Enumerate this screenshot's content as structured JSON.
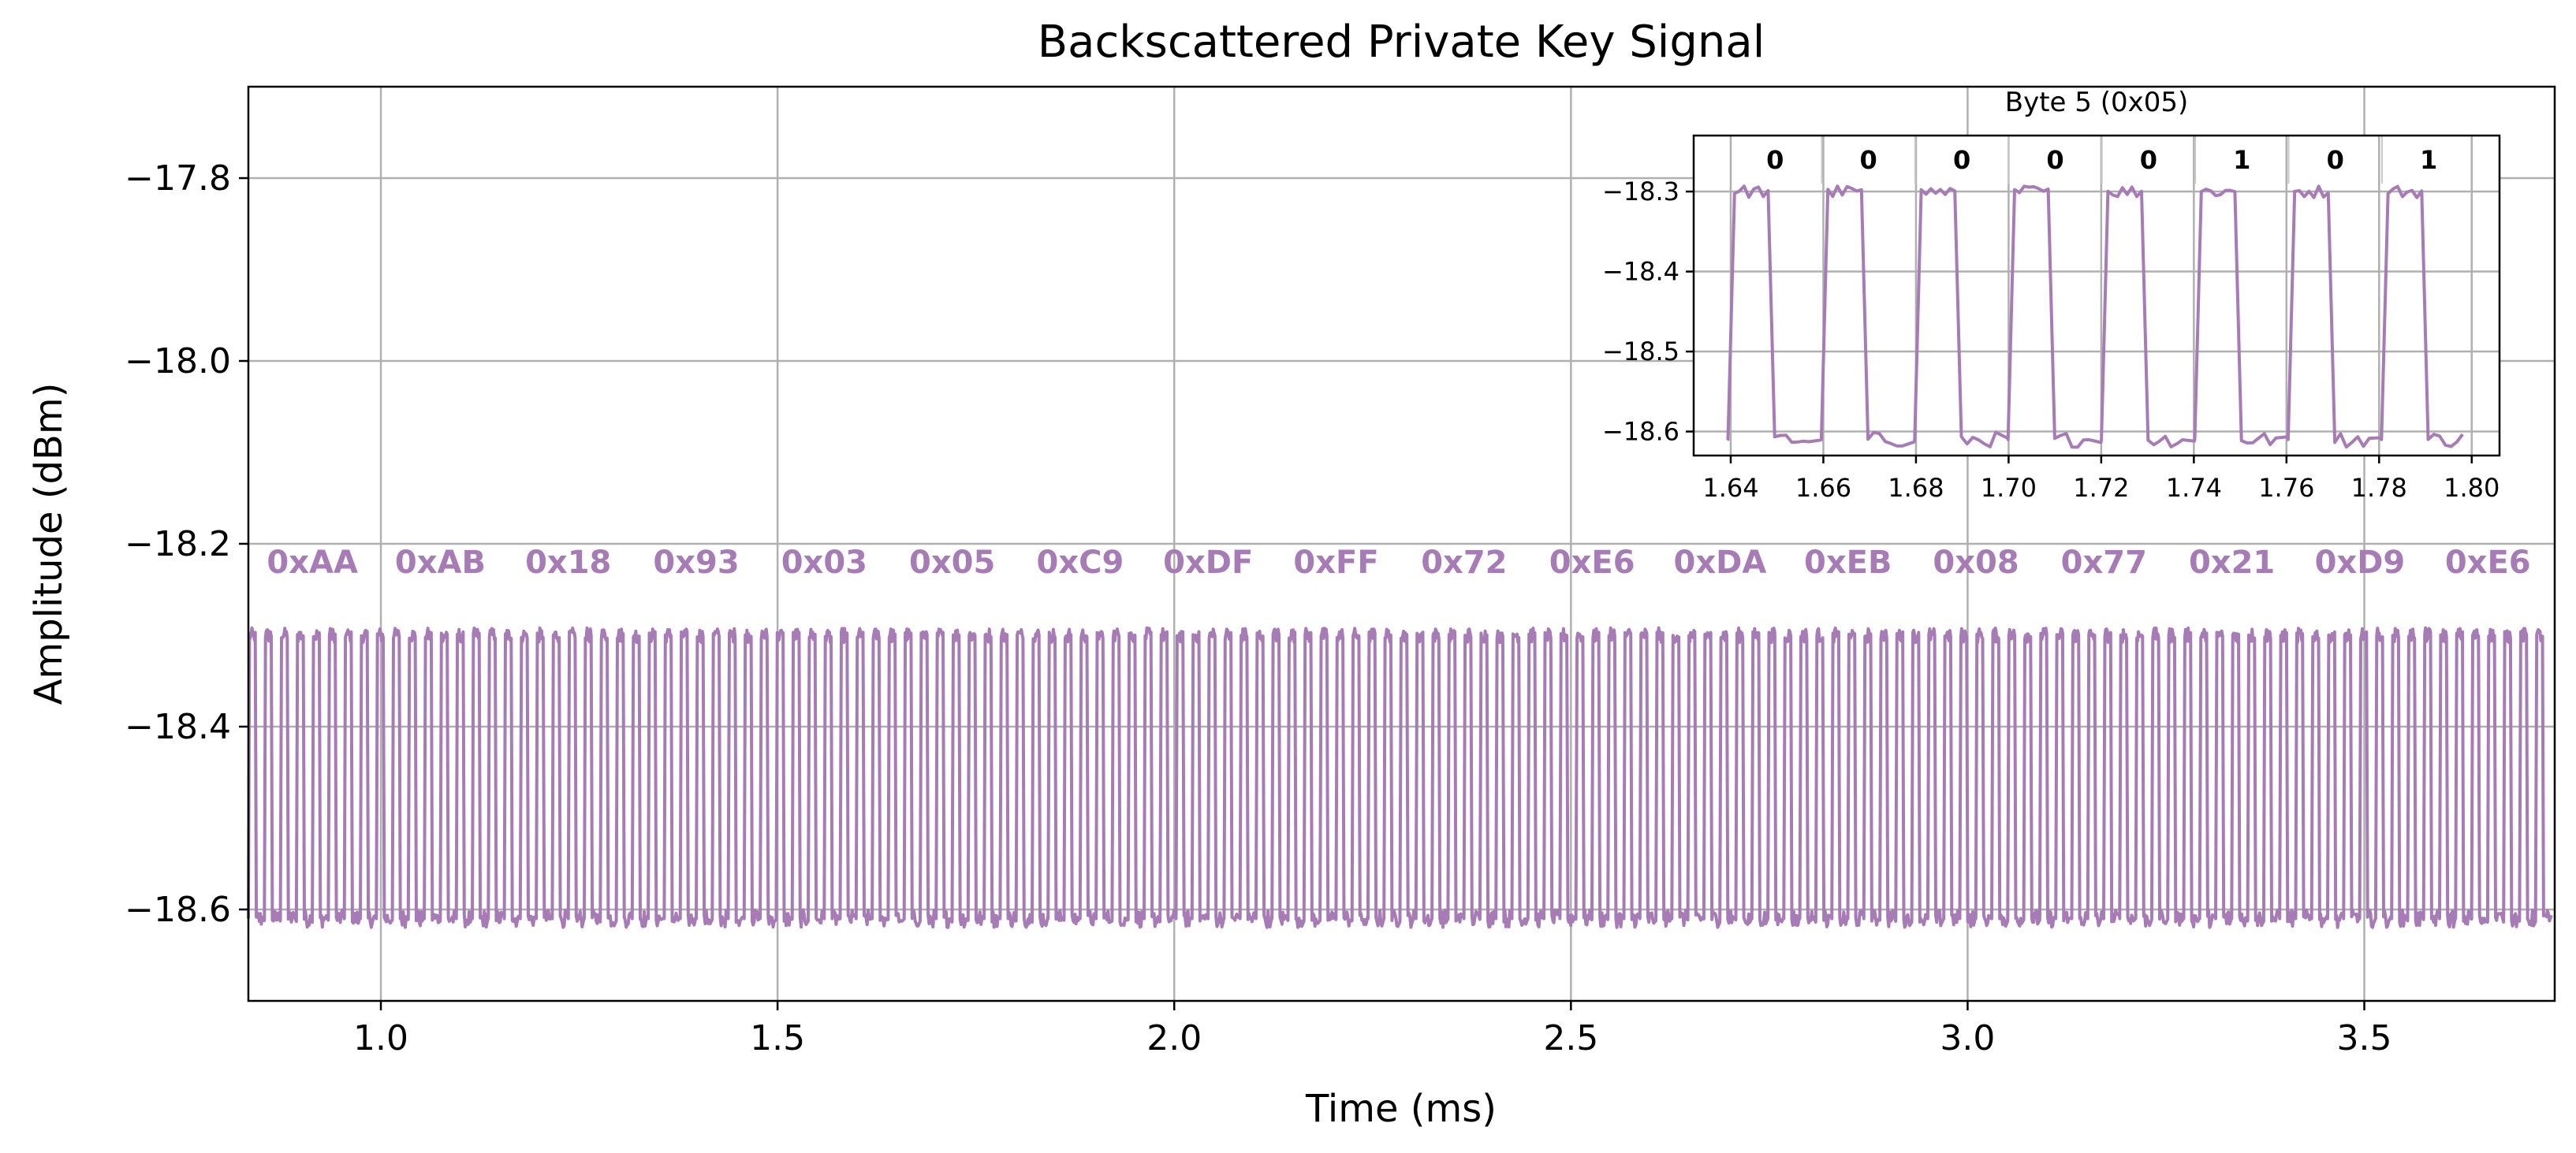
{
  "chart_data": {
    "type": "line",
    "title": "Backscattered Private Key Signal",
    "xlabel": "Time (ms)",
    "ylabel": "Amplitude (dBm)",
    "xlim": [
      0.833,
      3.74
    ],
    "ylim": [
      -18.7,
      -17.7
    ],
    "xticks": [
      1.0,
      1.5,
      2.0,
      2.5,
      3.0,
      3.5
    ],
    "xtick_labels": [
      "1.0",
      "1.5",
      "2.0",
      "2.5",
      "3.0",
      "3.5"
    ],
    "yticks": [
      -17.8,
      -18.0,
      -18.2,
      -18.4,
      -18.6
    ],
    "ytick_labels": [
      "−17.8",
      "−18.0",
      "−18.2",
      "−18.4",
      "−18.6"
    ],
    "grid": true,
    "line_color": "#a77bb5",
    "signal": {
      "high_level": -18.3,
      "low_level": -18.61,
      "start_time": 0.833,
      "byte_duration": 0.1613,
      "bit_duration": 0.02016,
      "noise": 0.008
    },
    "bytes": [
      "0xAA",
      "0xAB",
      "0x18",
      "0x93",
      "0x03",
      "0x05",
      "0xC9",
      "0xDF",
      "0xFF",
      "0x72",
      "0xE6",
      "0xDA",
      "0xEB",
      "0x08",
      "0x77",
      "0x21",
      "0xD9",
      "0xE6"
    ],
    "byte_label_y": -18.22,
    "inset": {
      "title": "Byte 5 (0x05)",
      "xlim": [
        1.632,
        1.806
      ],
      "ylim": [
        -18.63,
        -18.23
      ],
      "xticks": [
        1.64,
        1.66,
        1.68,
        1.7,
        1.72,
        1.74,
        1.76,
        1.78,
        1.8
      ],
      "xtick_labels": [
        "1.64",
        "1.66",
        "1.68",
        "1.70",
        "1.72",
        "1.74",
        "1.76",
        "1.78",
        "1.80"
      ],
      "yticks": [
        -18.3,
        -18.4,
        -18.5,
        -18.6
      ],
      "ytick_labels": [
        "−18.3",
        "−18.4",
        "−18.5",
        "−18.6"
      ],
      "bits": [
        "0",
        "0",
        "0",
        "0",
        "0",
        "1",
        "0",
        "1"
      ],
      "grid": true
    }
  }
}
